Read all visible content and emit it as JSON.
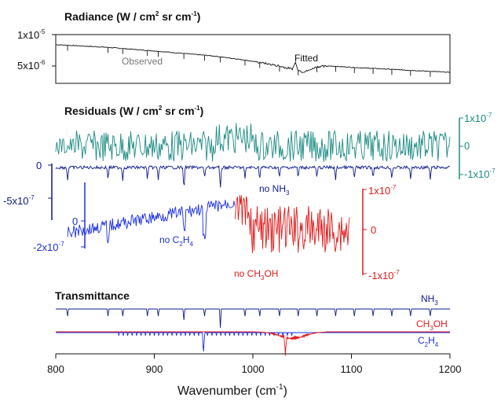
{
  "chart_data": {
    "type": "line",
    "xlabel": "Wavenumber",
    "xlabel_unit": "(cm",
    "xlabel_unit_sup": "-1",
    "xlabel_unit_close": ")",
    "xlim": [
      800,
      1200
    ],
    "x_ticks": [
      "800",
      "900",
      "1000",
      "1100",
      "1200"
    ],
    "panels": {
      "radiance": {
        "title": "Radiance",
        "title_unit": "(W / cm",
        "title_unit_sup": "2",
        "title_unit_rest": " sr cm",
        "title_unit_sup2": "-1",
        "title_unit_close": ")",
        "y_ticks": [
          {
            "base": "1x10",
            "exp": "-5"
          },
          {
            "base": "5x10",
            "exp": "-6"
          }
        ],
        "labels": {
          "observed": "Observed",
          "fitted": "Fitted"
        },
        "series": [
          {
            "name": "Observed",
            "x": [
              800,
              850,
              900,
              930,
              960,
              990,
              1010,
              1030,
              1040,
              1043,
              1046,
              1050,
              1055,
              1065,
              1080,
              1100,
              1150,
              1200
            ],
            "y": [
              8.4e-06,
              8e-06,
              7.4e-06,
              7e-06,
              6.6e-06,
              6e-06,
              5.5e-06,
              4.9e-06,
              4.5e-06,
              5.6e-06,
              4.4e-06,
              4.1e-06,
              4.2e-06,
              4.9e-06,
              5e-06,
              4.8e-06,
              4.4e-06,
              4e-06
            ]
          }
        ]
      },
      "residuals": {
        "title": "Residuals",
        "title_unit": "(W / cm",
        "title_unit_sup": "2",
        "title_unit_rest": " sr cm",
        "title_unit_sup2": "-1",
        "title_unit_close": ")",
        "series": [
          {
            "name": "",
            "color": "#1a8a82",
            "ticks": [
              {
                "base": "1x10",
                "exp": "-7"
              },
              {
                "base": "0",
                "exp": ""
              },
              {
                "base": "-1x10",
                "exp": "-7"
              }
            ]
          },
          {
            "name": "no NH",
            "name_sub": "3",
            "color": "#0d1a8c",
            "ticks": [
              {
                "base": "0",
                "exp": ""
              },
              {
                "base": "-5x10",
                "exp": "-7"
              }
            ]
          },
          {
            "name": "no C",
            "name_sub": "2",
            "name_mid": "H",
            "name_sub2": "4",
            "color": "#1a2ee6",
            "x_range": [
              812,
              982
            ],
            "ticks": [
              {
                "base": "0",
                "exp": ""
              },
              {
                "base": "-2x10",
                "exp": "-7"
              }
            ]
          },
          {
            "name": "no CH",
            "name_sub": "3",
            "name_mid": "OH",
            "color": "#e31a1a",
            "x_range": [
              982,
              1098
            ],
            "ticks": [
              {
                "base": "1x10",
                "exp": "-7"
              },
              {
                "base": "0",
                "exp": ""
              },
              {
                "base": "-1x10",
                "exp": "-7"
              }
            ]
          }
        ]
      },
      "transmittance": {
        "title": "Transmittance",
        "series": [
          {
            "name": "NH",
            "name_sub": "3",
            "color": "#0d1a8c",
            "lines_cm": [
              812,
              853,
              868,
              893,
              904,
              930,
              951,
              967,
              992,
              1007,
              1027,
              1046,
              1065,
              1084,
              1103,
              1122,
              1141,
              1160,
              1180
            ]
          },
          {
            "name": "CH",
            "name_sub": "3",
            "name_mid": "OH",
            "color": "#e31a1a",
            "band_center": 1033,
            "band_range": [
              1000,
              1075
            ]
          },
          {
            "name": "C",
            "name_sub": "2",
            "name_mid": "H",
            "name_sub2": "4",
            "color": "#1a2ee6",
            "band_center": 950,
            "band_range": [
              850,
              1050
            ]
          }
        ]
      }
    }
  }
}
